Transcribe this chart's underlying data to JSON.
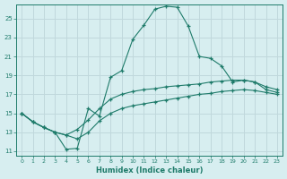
{
  "xlabel": "Humidex (Indice chaleur)",
  "background_color": "#d7eef0",
  "grid_color": "#c0d8dc",
  "line_color": "#1e7b6a",
  "xlim": [
    -0.5,
    23.5
  ],
  "ylim": [
    10.5,
    26.5
  ],
  "yticks": [
    11,
    13,
    15,
    17,
    19,
    21,
    23,
    25
  ],
  "xticks": [
    0,
    1,
    2,
    3,
    4,
    5,
    6,
    7,
    8,
    9,
    10,
    11,
    12,
    13,
    14,
    15,
    16,
    17,
    18,
    19,
    20,
    21,
    22,
    23
  ],
  "line1_x": [
    0,
    1,
    2,
    3,
    4,
    5,
    6,
    7,
    8,
    9,
    10,
    11,
    12,
    13,
    14,
    15,
    16,
    17,
    18,
    19,
    20,
    21,
    22,
    23
  ],
  "line1_y": [
    15.0,
    14.1,
    13.5,
    13.0,
    11.2,
    11.3,
    15.5,
    14.7,
    18.8,
    19.5,
    22.8,
    24.3,
    26.0,
    26.3,
    26.2,
    24.2,
    21.0,
    20.8,
    20.0,
    18.3,
    18.5,
    18.3,
    17.5,
    17.2
  ],
  "line2_x": [
    0,
    1,
    2,
    3,
    4,
    5,
    6,
    7,
    8,
    9,
    10,
    11,
    12,
    13,
    14,
    15,
    16,
    17,
    18,
    19,
    20,
    21,
    22,
    23
  ],
  "line2_y": [
    15.0,
    14.1,
    13.5,
    13.0,
    12.7,
    13.3,
    14.3,
    15.5,
    16.5,
    17.0,
    17.3,
    17.5,
    17.6,
    17.8,
    17.9,
    18.0,
    18.1,
    18.3,
    18.4,
    18.5,
    18.5,
    18.3,
    17.8,
    17.5
  ],
  "line3_x": [
    0,
    1,
    2,
    3,
    4,
    5,
    6,
    7,
    8,
    9,
    10,
    11,
    12,
    13,
    14,
    15,
    16,
    17,
    18,
    19,
    20,
    21,
    22,
    23
  ],
  "line3_y": [
    15.0,
    14.1,
    13.5,
    13.0,
    12.7,
    12.3,
    13.0,
    14.2,
    15.0,
    15.5,
    15.8,
    16.0,
    16.2,
    16.4,
    16.6,
    16.8,
    17.0,
    17.1,
    17.3,
    17.4,
    17.5,
    17.4,
    17.2,
    17.0
  ]
}
